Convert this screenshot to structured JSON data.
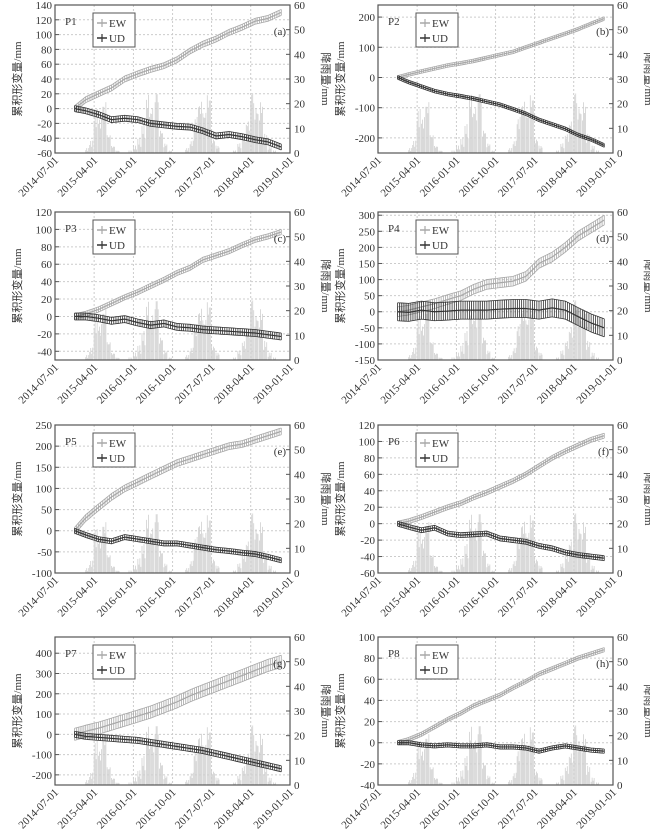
{
  "chart_data": [
    {
      "type": "line",
      "panel": "P1",
      "letter": "(a)",
      "ylim": [
        -60,
        140
      ],
      "yticks": [
        -60,
        -40,
        -20,
        0,
        20,
        40,
        60,
        80,
        100,
        120,
        140
      ],
      "ew": [
        0,
        12,
        20,
        28,
        40,
        47,
        53,
        58,
        66,
        78,
        87,
        94,
        103,
        110,
        118,
        122,
        130
      ],
      "ew_err": 4,
      "ud": [
        0,
        -3,
        -8,
        -15,
        -13,
        -15,
        -20,
        -22,
        -24,
        -25,
        -30,
        -37,
        -35,
        -38,
        -42,
        -45,
        -52
      ],
      "ud_err": 4
    },
    {
      "type": "line",
      "panel": "P2",
      "letter": "(b)",
      "ylim": [
        -250,
        240
      ],
      "yticks": [
        -200,
        -100,
        0,
        100,
        200
      ],
      "ew": [
        0,
        10,
        20,
        30,
        40,
        47,
        55,
        65,
        75,
        85,
        100,
        115,
        130,
        145,
        160,
        178,
        195
      ],
      "ew_err": 6,
      "ud": [
        0,
        -15,
        -30,
        -45,
        -55,
        -62,
        -70,
        -80,
        -90,
        -105,
        -120,
        -140,
        -155,
        -170,
        -190,
        -205,
        -225
      ],
      "ud_err": 6
    },
    {
      "type": "line",
      "panel": "P3",
      "letter": "(c)",
      "ylim": [
        -50,
        120
      ],
      "yticks": [
        -40,
        -20,
        0,
        20,
        40,
        60,
        80,
        100,
        120
      ],
      "ew": [
        0,
        3,
        8,
        15,
        22,
        28,
        35,
        42,
        50,
        56,
        65,
        70,
        75,
        82,
        88,
        92,
        97
      ],
      "ew_err": 3,
      "ud": [
        0,
        0,
        -2,
        -5,
        -3,
        -7,
        -10,
        -8,
        -12,
        -13,
        -15,
        -16,
        -17,
        -18,
        -19,
        -21,
        -23
      ],
      "ud_err": 4
    },
    {
      "type": "line",
      "panel": "P4",
      "letter": "(d)",
      "ylim": [
        -150,
        310
      ],
      "yticks": [
        -150,
        -100,
        -50,
        0,
        50,
        100,
        150,
        200,
        250,
        300
      ],
      "ew": [
        0,
        5,
        15,
        25,
        38,
        50,
        70,
        85,
        90,
        95,
        110,
        150,
        170,
        200,
        235,
        260,
        285
      ],
      "ew_err": 15,
      "ud": [
        0,
        -2,
        5,
        0,
        2,
        5,
        5,
        5,
        8,
        10,
        10,
        5,
        12,
        5,
        -15,
        -35,
        -50
      ],
      "ud_err": 28
    },
    {
      "type": "line",
      "panel": "P5",
      "letter": "(e)",
      "ylim": [
        -100,
        250
      ],
      "yticks": [
        -100,
        -50,
        0,
        50,
        100,
        150,
        200,
        250
      ],
      "ew": [
        0,
        30,
        55,
        80,
        100,
        115,
        130,
        145,
        160,
        170,
        180,
        190,
        200,
        205,
        215,
        225,
        235
      ],
      "ew_err": 8,
      "ud": [
        0,
        -10,
        -20,
        -25,
        -15,
        -20,
        -25,
        -30,
        -30,
        -35,
        -40,
        -45,
        -48,
        -52,
        -55,
        -62,
        -70
      ],
      "ud_err": 6
    },
    {
      "type": "line",
      "panel": "P6",
      "letter": "(f)",
      "ylim": [
        -60,
        120
      ],
      "yticks": [
        -60,
        -40,
        -20,
        0,
        20,
        40,
        60,
        80,
        100,
        120
      ],
      "ew": [
        0,
        3,
        8,
        14,
        20,
        25,
        32,
        38,
        45,
        52,
        60,
        70,
        80,
        88,
        95,
        102,
        107
      ],
      "ew_err": 3,
      "ud": [
        0,
        -4,
        -8,
        -5,
        -12,
        -14,
        -13,
        -12,
        -18,
        -20,
        -22,
        -27,
        -30,
        -35,
        -38,
        -40,
        -42
      ],
      "ud_err": 3
    },
    {
      "type": "line",
      "panel": "P7",
      "letter": "(g)",
      "ylim": [
        -250,
        480
      ],
      "yticks": [
        -200,
        -100,
        0,
        100,
        200,
        300,
        400
      ],
      "ew": [
        0,
        15,
        30,
        50,
        70,
        90,
        110,
        135,
        160,
        190,
        215,
        240,
        265,
        290,
        315,
        340,
        360
      ],
      "ew_err": 30,
      "ud": [
        0,
        -10,
        -15,
        -20,
        -25,
        -30,
        -40,
        -50,
        -60,
        -70,
        -80,
        -95,
        -110,
        -125,
        -140,
        -155,
        -170
      ],
      "ud_err": 15
    },
    {
      "type": "line",
      "panel": "P8",
      "letter": "(h)",
      "ylim": [
        -40,
        100
      ],
      "yticks": [
        -40,
        -20,
        0,
        20,
        40,
        60,
        80,
        100
      ],
      "ew": [
        0,
        3,
        8,
        15,
        22,
        28,
        35,
        40,
        45,
        52,
        58,
        65,
        70,
        75,
        80,
        84,
        88
      ],
      "ew_err": 2,
      "ud": [
        0,
        0,
        -2,
        -3,
        -2,
        -3,
        -3,
        -2,
        -4,
        -4,
        -5,
        -8,
        -5,
        -3,
        -5,
        -7,
        -8
      ],
      "ud_err": 2
    }
  ],
  "shared": {
    "dates": [
      "2014-11-15",
      "2015-02-01",
      "2015-05-01",
      "2015-08-01",
      "2015-11-01",
      "2016-02-01",
      "2016-05-01",
      "2016-08-01",
      "2016-11-01",
      "2017-02-01",
      "2017-05-01",
      "2017-08-01",
      "2017-11-01",
      "2018-02-01",
      "2018-05-01",
      "2018-08-01",
      "2018-11-01"
    ],
    "xlim": [
      "2014-07-01",
      "2019-01-01"
    ],
    "xticks": [
      "2014-07-01",
      "2015-04-01",
      "2016-01-01",
      "2016-10-01",
      "2017-07-01",
      "2018-04-01",
      "2019-01-01"
    ],
    "rain_ylim": [
      0,
      60
    ],
    "rain_yticks": [
      0,
      10,
      20,
      30,
      40,
      50,
      60
    ],
    "rain_start": "2014-12-01",
    "rain_monthly": [
      0,
      0,
      2,
      5,
      18,
      15,
      22,
      8,
      3,
      1,
      0,
      0,
      1,
      3,
      6,
      12,
      25,
      20,
      28,
      10,
      4,
      1,
      0,
      0,
      0,
      2,
      5,
      15,
      22,
      18,
      25,
      6,
      3,
      0,
      0,
      0,
      1,
      4,
      8,
      14,
      28,
      20,
      22,
      8,
      3,
      1
    ],
    "ylabel_left": "累积形变量/mm",
    "ylabel_right": "降雨量/mm",
    "legend": [
      "EW",
      "UD"
    ],
    "colors": {
      "ew": "#a8a8a8",
      "ud": "#333333",
      "rain": "#d0d0d0",
      "grid": "#cccccc"
    }
  }
}
